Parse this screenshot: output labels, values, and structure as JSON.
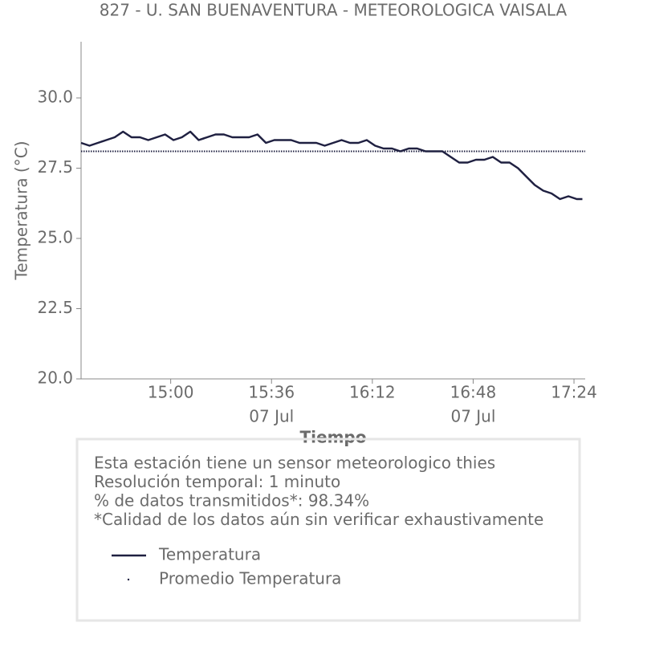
{
  "chart_data": {
    "type": "line",
    "title": "827 - U. SAN BUENAVENTURA - METEOROLOGICA VAISALA",
    "xlabel": "Tiempo",
    "ylabel": "Temperatura (°C)",
    "x": [
      "14:28",
      "14:31",
      "14:34",
      "14:37",
      "14:40",
      "14:43",
      "14:46",
      "14:49",
      "14:52",
      "14:55",
      "14:58",
      "15:01",
      "15:04",
      "15:07",
      "15:10",
      "15:13",
      "15:16",
      "15:19",
      "15:22",
      "15:25",
      "15:28",
      "15:31",
      "15:34",
      "15:37",
      "15:40",
      "15:43",
      "15:46",
      "15:49",
      "15:52",
      "15:55",
      "15:58",
      "16:01",
      "16:04",
      "16:07",
      "16:10",
      "16:13",
      "16:16",
      "16:19",
      "16:22",
      "16:25",
      "16:28",
      "16:31",
      "16:34",
      "16:37",
      "16:40",
      "16:43",
      "16:46",
      "16:49",
      "16:52",
      "16:55",
      "16:58",
      "17:01",
      "17:04",
      "17:07",
      "17:10",
      "17:13",
      "17:16",
      "17:19",
      "17:22",
      "17:25",
      "17:27"
    ],
    "series": [
      {
        "name": "Temperatura",
        "color": "#1f2041",
        "style": "solid",
        "values": [
          28.4,
          28.3,
          28.4,
          28.5,
          28.6,
          28.8,
          28.6,
          28.6,
          28.5,
          28.6,
          28.7,
          28.5,
          28.6,
          28.8,
          28.5,
          28.6,
          28.7,
          28.7,
          28.6,
          28.6,
          28.6,
          28.7,
          28.4,
          28.5,
          28.5,
          28.5,
          28.4,
          28.4,
          28.4,
          28.3,
          28.4,
          28.5,
          28.4,
          28.4,
          28.5,
          28.3,
          28.2,
          28.2,
          28.1,
          28.2,
          28.2,
          28.1,
          28.1,
          28.1,
          27.9,
          27.7,
          27.7,
          27.8,
          27.8,
          27.9,
          27.7,
          27.7,
          27.5,
          27.2,
          26.9,
          26.7,
          26.6,
          26.4,
          26.5,
          26.4,
          26.4
        ]
      },
      {
        "name": "Promedio Temperatura",
        "color": "#1f2041",
        "style": "dotted",
        "value": 28.1
      }
    ],
    "xlim": [
      "14:28",
      "17:28"
    ],
    "xticks": [
      "15:00",
      "15:36",
      "16:12",
      "16:48",
      "17:24"
    ],
    "xtick_dates": [
      null,
      "07 Jul",
      null,
      "07 Jul",
      null
    ],
    "ylim": [
      20,
      32
    ],
    "yticks": [
      {
        "value": 20,
        "label": "20.0"
      },
      {
        "value": 22.5,
        "label": "22.5"
      },
      {
        "value": 25,
        "label": "25.0"
      },
      {
        "value": 27.5,
        "label": "27.5"
      },
      {
        "value": 30,
        "label": "30.0"
      }
    ],
    "info_lines": [
      "Esta estación tiene un sensor meteorologico thies",
      "Resolución temporal: 1 minuto",
      "% de datos transmitidos*: 98.34%",
      "*Calidad de los datos aún sin verificar exhaustivamente"
    ]
  }
}
